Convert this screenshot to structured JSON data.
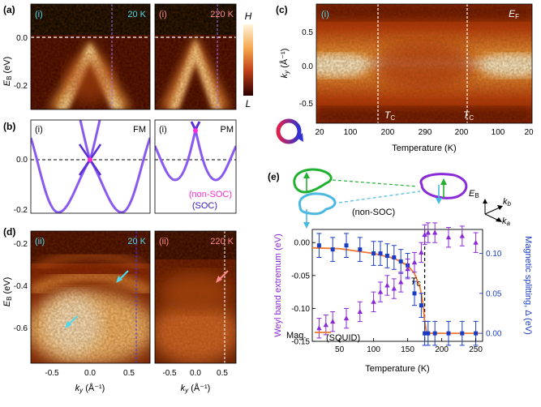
{
  "colors": {
    "hot_high": "#fff3d6",
    "hot_mid": "#e2701e",
    "hot_low": "#3a0000",
    "soc": "#5b2fd6",
    "nonsoc": "#ff2ad0",
    "mag_line": "#f07830",
    "purple_pts": "#8a2ad8",
    "blue_pts": "#1a3cc4",
    "cyan": "#4fd8f0",
    "pink_text": "#ff8a8a"
  },
  "panel_a": {
    "label": "(a)",
    "ylabel": "E",
    "ylabel_sub": "B",
    "ylabel_unit": "(eV)",
    "yticks": [
      "0.0",
      "-0.2"
    ],
    "left": {
      "tag": "(i)",
      "temp": "20 K"
    },
    "right": {
      "tag": "(i)",
      "temp": "220 K"
    },
    "colorbar": {
      "high": "H",
      "low": "L"
    }
  },
  "panel_b": {
    "label": "(b)",
    "yticks": [
      "0.0",
      "-0.2"
    ],
    "left": {
      "tag": "(i)",
      "state": "FM"
    },
    "right": {
      "tag": "(i)",
      "state": "PM"
    },
    "legend_nonsoc": "(non-SOC)",
    "legend_soc": "(SOC)"
  },
  "panel_c": {
    "label": "(c)",
    "tag": "(i)",
    "ef_label": "E",
    "ef_sub": "F",
    "ylabel": "k",
    "ylabel_sub": "y",
    "ylabel_unit": "(Å⁻¹)",
    "yticks": [
      "0.5",
      "0.0",
      "-0.5"
    ],
    "xticks": [
      "20",
      "100",
      "200",
      "290",
      "200",
      "100",
      "20"
    ],
    "xlabel": "Temperature (K)",
    "tc_label": "T",
    "tc_sub": "C"
  },
  "panel_d": {
    "label": "(d)",
    "ylabel": "E",
    "ylabel_sub": "B",
    "ylabel_unit": "(eV)",
    "yticks": [
      "-0.2",
      "-0.4",
      "-0.6"
    ],
    "xticks": [
      "-0.5",
      "0.0",
      "0.5"
    ],
    "xlabel": "k",
    "xlabel_sub": "y",
    "xlabel_unit": "(Å⁻¹)",
    "left": {
      "tag": "(ii)",
      "temp": "20 K"
    },
    "right": {
      "tag": "(ii)",
      "temp": "220 K"
    }
  },
  "panel_e": {
    "label": "(e)",
    "nonsoc_label": "(non-SOC)",
    "axis_eb": "E",
    "axis_eb_sub": "B",
    "axis_kb": "k",
    "axis_kb_sub": "b",
    "axis_ka": "k",
    "axis_ka_sub": "a",
    "mag_legend_1": "Mag.",
    "mag_legend_2": "(SQUID)",
    "tc_label": "T",
    "tc_sub": "C"
  },
  "chart_data": {
    "type": "scatter",
    "title": "",
    "xlabel": "Temperature (K)",
    "ylabel_left": "Weyl band extremum (eV)",
    "ylabel_right": "Magnetic splitting, Δ (eV)",
    "xlim": [
      10,
      260
    ],
    "ylim_left": [
      -0.15,
      0.02
    ],
    "ylim_right": [
      -0.01,
      0.13
    ],
    "xticks": [
      50,
      100,
      150,
      200,
      250
    ],
    "yticks_left": [
      "0.00",
      "-0.05",
      "-0.10",
      "-0.15"
    ],
    "yticks_right": [
      "0.10",
      "0.05",
      "0.00"
    ],
    "tc": 175,
    "series": [
      {
        "name": "Weyl band extremum",
        "axis": "left",
        "marker": "triangle",
        "x": [
          20,
          30,
          40,
          60,
          80,
          100,
          110,
          120,
          130,
          140,
          150,
          160,
          170,
          175,
          180,
          190,
          210,
          230,
          250
        ],
        "y": [
          -0.13,
          -0.125,
          -0.12,
          -0.115,
          -0.105,
          -0.09,
          -0.075,
          -0.065,
          -0.07,
          -0.06,
          -0.04,
          -0.03,
          -0.015,
          0.012,
          0.015,
          0.015,
          0.008,
          0.01,
          0.0
        ],
        "err": [
          0.015,
          0.015,
          0.015,
          0.015,
          0.015,
          0.015,
          0.015,
          0.015,
          0.015,
          0.015,
          0.015,
          0.015,
          0.015,
          0.015,
          0.015,
          0.015,
          0.015,
          0.015,
          0.015
        ]
      },
      {
        "name": "Magnetic splitting",
        "axis": "right",
        "marker": "square",
        "x": [
          20,
          40,
          60,
          80,
          100,
          110,
          120,
          130,
          140,
          150,
          160,
          170,
          175,
          180,
          190,
          210,
          230,
          250
        ],
        "y": [
          0.11,
          0.105,
          0.11,
          0.105,
          0.1,
          0.1,
          0.097,
          0.095,
          0.09,
          0.085,
          0.05,
          0.035,
          0.0,
          0.0,
          0.0,
          0.0,
          0.0,
          0.0
        ],
        "err": [
          0.015,
          0.015,
          0.015,
          0.015,
          0.015,
          0.015,
          0.015,
          0.015,
          0.015,
          0.015,
          0.015,
          0.015,
          0.015,
          0.015,
          0.015,
          0.015,
          0.015,
          0.015
        ]
      },
      {
        "name": "Mag. (SQUID)",
        "axis": "right",
        "marker": "line",
        "x": [
          10,
          50,
          100,
          130,
          150,
          160,
          168,
          172,
          175,
          178,
          190,
          220,
          255
        ],
        "y": [
          0.107,
          0.106,
          0.1,
          0.094,
          0.085,
          0.075,
          0.058,
          0.04,
          0.015,
          0.0,
          0.0,
          0.0,
          0.0
        ]
      }
    ]
  }
}
